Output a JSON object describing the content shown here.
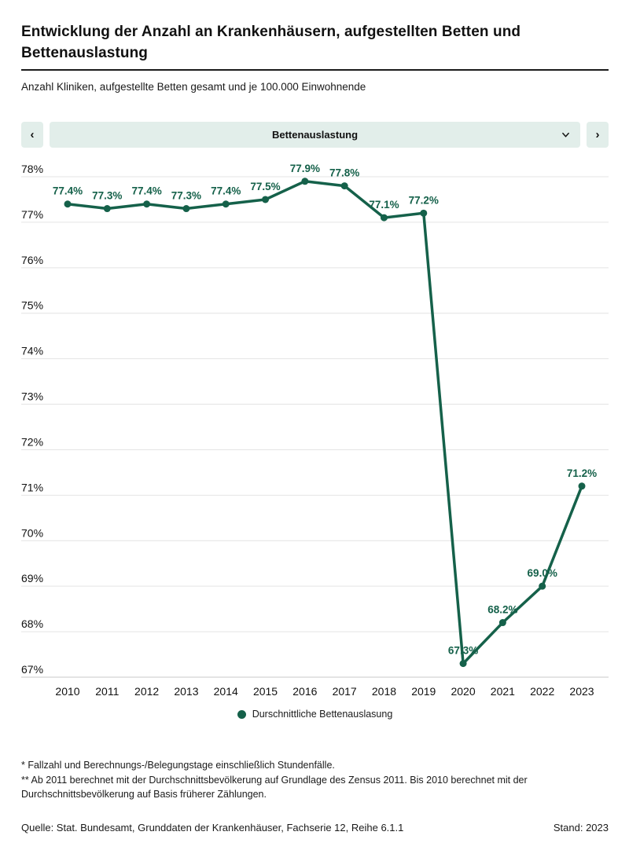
{
  "header": {
    "title": "Entwicklung der Anzahl an Krankenhäusern, aufgestellten Betten und Bettenauslastung",
    "subtitle": "Anzahl Kliniken, aufgestellte Betten gesamt und je 100.000 Einwohnende"
  },
  "selector": {
    "prev_label": "‹",
    "next_label": "›",
    "selected_metric": "Bettenauslastung"
  },
  "chart_data": {
    "type": "line",
    "title": "Bettenauslastung",
    "categories": [
      "2010",
      "2011",
      "2012",
      "2013",
      "2014",
      "2015",
      "2016",
      "2017",
      "2018",
      "2019",
      "2020",
      "2021",
      "2022",
      "2023"
    ],
    "series": [
      {
        "name": "Durschnittliche Bettenauslasung",
        "values": [
          77.4,
          77.3,
          77.4,
          77.3,
          77.4,
          77.5,
          77.9,
          77.8,
          77.1,
          77.2,
          67.3,
          68.2,
          69.0,
          71.2
        ]
      }
    ],
    "unit": "%",
    "ylim": [
      67,
      78
    ],
    "ytick_step": 1,
    "grid": true,
    "legend_position": "bottom",
    "line_color": "#15614a",
    "grid_color": "#e4e4e4",
    "axis_color": "#c9c9c9",
    "tick_label_color": "#111111",
    "data_label_decimals": 1
  },
  "legend": {
    "label": "Durschnittliche Bettenauslasung",
    "marker_color": "#15614a"
  },
  "footnotes": [
    "* Fallzahl und Berechnungs-/Belegungstage einschließlich Stundenfälle.",
    "** Ab 2011 berechnet mit der Durchschnittsbevölkerung auf Grundlage des Zensus 2011. Bis 2010 berechnet mit der Durchschnittsbevölkerung auf Basis früherer Zählungen."
  ],
  "source": {
    "text": "Quelle: Stat. Bundesamt, Grunddaten der Krankenhäuser, Fachserie 12, Reihe 6.1.1",
    "stand": "Stand: 2023"
  }
}
